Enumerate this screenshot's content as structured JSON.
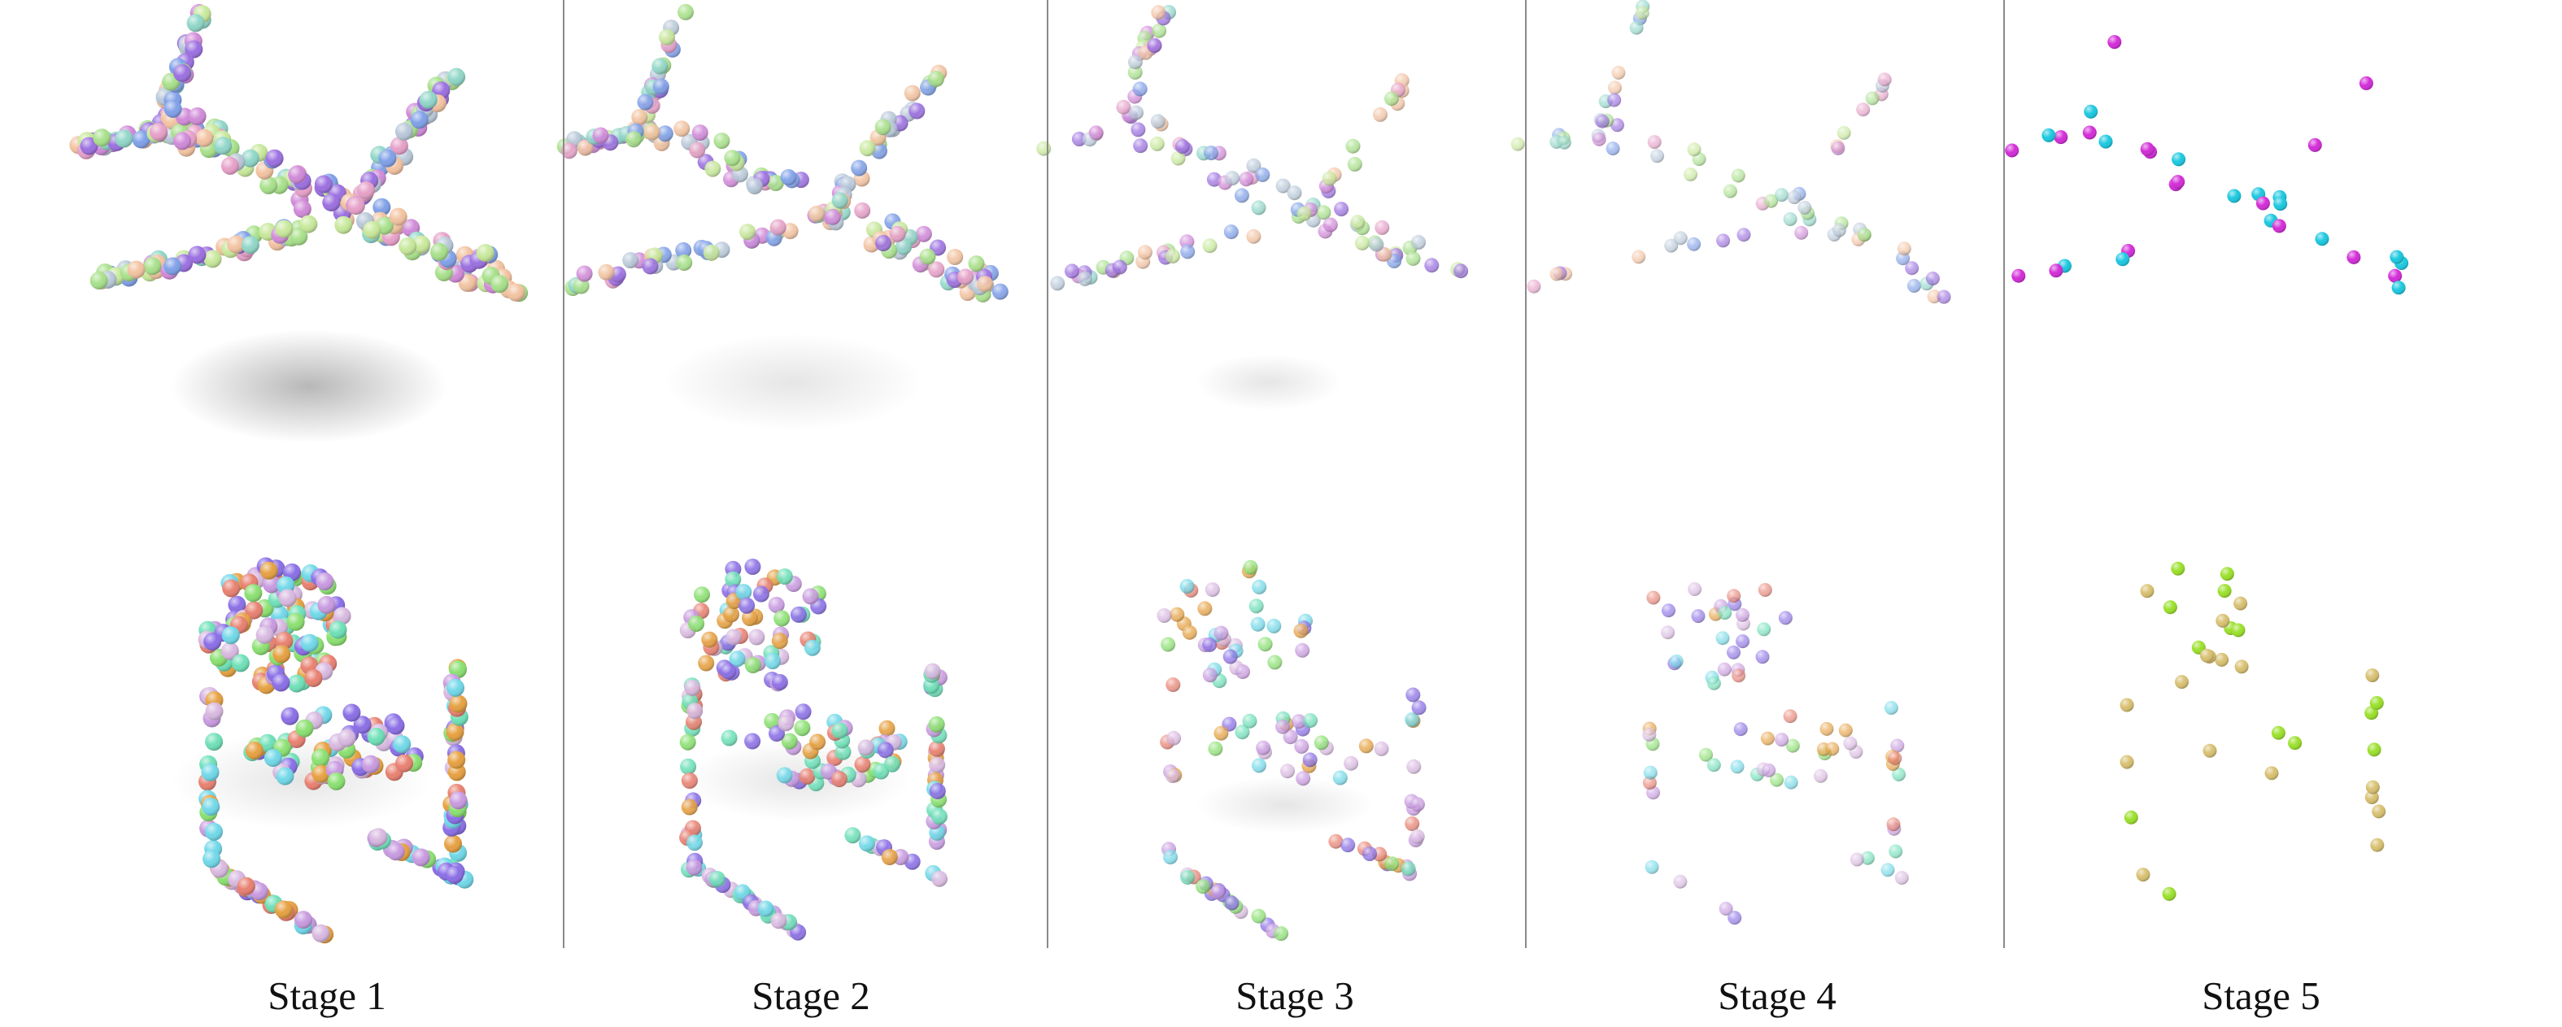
{
  "figure": {
    "stages": [
      {
        "label": "Stage 1"
      },
      {
        "label": "Stage 2"
      },
      {
        "label": "Stage 3"
      },
      {
        "label": "Stage 4"
      },
      {
        "label": "Stage 5"
      }
    ],
    "objects": [
      "airplane-point-cloud",
      "chair-point-cloud"
    ]
  }
}
